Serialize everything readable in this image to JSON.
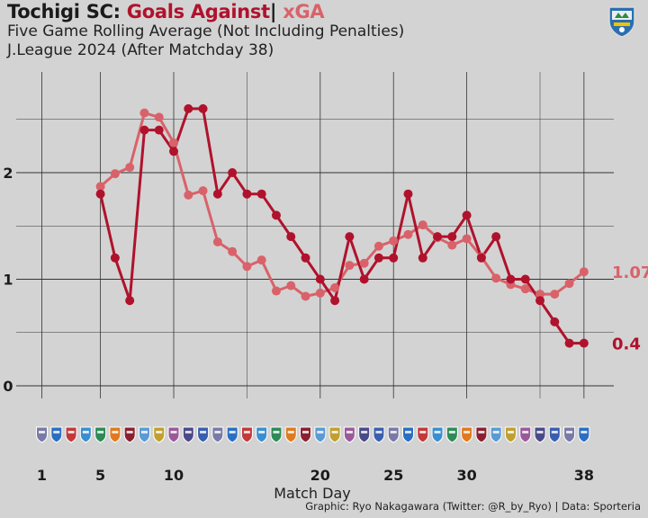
{
  "header": {
    "team": "Tochigi SC:",
    "goals_against": "Goals Against",
    "separator": "|",
    "xga": "xGA",
    "subtitle1": "Five Game Rolling Average (Not Including Penalties)",
    "subtitle2": "J.League 2024 (After Matchday 38)"
  },
  "credit": "Graphic: Ryo Nakagawara (Twitter: @R_by_Ryo) | Data: Sporteria",
  "colors": {
    "goals_against": "#b0122c",
    "xga": "#d9626a",
    "background": "#d3d3d3",
    "grid": "#333333"
  },
  "icons": {
    "team_logo": "tochigi-sc-crest-icon",
    "opponent_badges": "opponent-crest-icons"
  },
  "chart_data": {
    "type": "line",
    "xlabel": "Match Day",
    "ylabel": "",
    "xlim": [
      1,
      38
    ],
    "ylim": [
      0,
      2.6
    ],
    "x_ticks": [
      1,
      5,
      10,
      20,
      25,
      30,
      38
    ],
    "y_ticks": [
      0,
      1,
      2
    ],
    "grid": true,
    "legend": "none",
    "series": [
      {
        "name": "Goals Against",
        "color": "#b0122c",
        "end_label": "0.4",
        "x": [
          5,
          6,
          7,
          8,
          9,
          10,
          11,
          12,
          13,
          14,
          15,
          16,
          17,
          18,
          19,
          20,
          21,
          22,
          23,
          24,
          25,
          26,
          27,
          28,
          29,
          30,
          31,
          32,
          33,
          34,
          35,
          36,
          37,
          38
        ],
        "values": [
          1.8,
          1.2,
          0.8,
          2.4,
          2.4,
          2.2,
          2.6,
          2.6,
          1.8,
          2.0,
          1.8,
          1.8,
          1.6,
          1.4,
          1.2,
          1.0,
          0.8,
          1.4,
          1.0,
          1.2,
          1.2,
          1.8,
          1.2,
          1.4,
          1.4,
          1.6,
          1.2,
          1.4,
          1.0,
          1.0,
          0.8,
          0.6,
          0.4,
          0.4
        ]
      },
      {
        "name": "xGA",
        "color": "#d9626a",
        "end_label": "1.07",
        "x": [
          5,
          6,
          7,
          8,
          9,
          10,
          11,
          12,
          13,
          14,
          15,
          16,
          17,
          18,
          19,
          20,
          21,
          22,
          23,
          24,
          25,
          26,
          27,
          28,
          29,
          30,
          31,
          32,
          33,
          34,
          35,
          36,
          37,
          38
        ],
        "values": [
          1.87,
          1.99,
          2.05,
          2.56,
          2.52,
          2.28,
          1.79,
          1.83,
          1.35,
          1.26,
          1.12,
          1.18,
          0.89,
          0.94,
          0.84,
          0.87,
          0.92,
          1.13,
          1.15,
          1.31,
          1.36,
          1.42,
          1.51,
          1.39,
          1.32,
          1.38,
          1.21,
          1.01,
          0.95,
          0.91,
          0.86,
          0.86,
          0.96,
          1.07
        ]
      }
    ]
  }
}
